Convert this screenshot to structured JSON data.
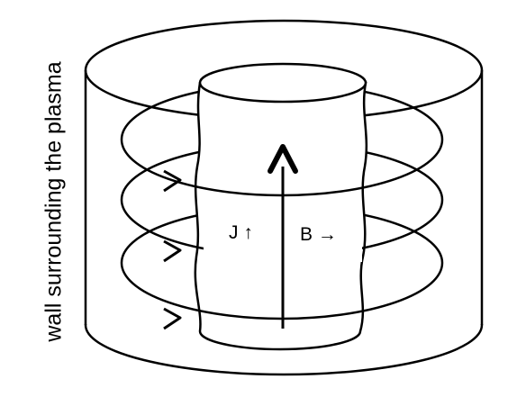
{
  "side_label": "wall surrounding the plasma",
  "current_label": "J ↑",
  "field_label": "B →",
  "colors": {
    "stroke": "#000000",
    "background": "#ffffff"
  }
}
